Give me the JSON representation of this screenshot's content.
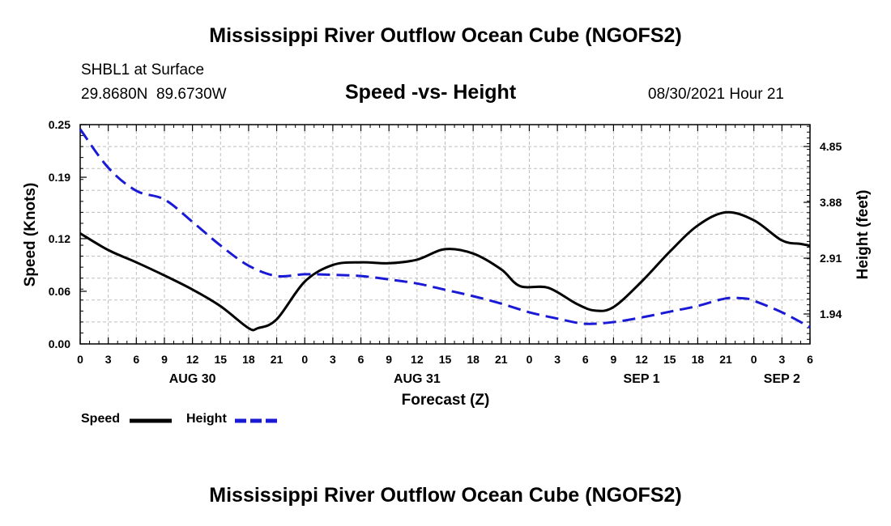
{
  "header": {
    "title": "Mississippi River Outflow Ocean Cube (NGOFS2)",
    "station": "SHBL1 at Surface",
    "coords": "29.8680N  89.6730W",
    "subtitle": "Speed -vs- Height",
    "datetime": "08/30/2021 Hour 21"
  },
  "footer": {
    "title": "Mississippi River Outflow Ocean Cube (NGOFS2)"
  },
  "legend": {
    "speed_label": "Speed",
    "height_label": "Height"
  },
  "colors": {
    "speed": "#000000",
    "height": "#1a1ad6",
    "grid": "#bdbdbd"
  },
  "chart_data": {
    "type": "line",
    "xlabel": "Forecast (Z)",
    "ylabel_left": "Speed (Knots)",
    "ylabel_right": "Height (feet)",
    "xlim": [
      0,
      78
    ],
    "ylim_left": [
      0,
      0.25
    ],
    "ylim_right": [
      1.42,
      5.23
    ],
    "x_ticks": [
      0,
      3,
      6,
      9,
      12,
      15,
      18,
      21,
      24,
      27,
      30,
      33,
      36,
      39,
      42,
      45,
      48,
      51,
      54,
      57,
      60,
      63,
      66,
      69,
      72,
      75,
      78
    ],
    "x_tick_labels": [
      "0",
      "3",
      "6",
      "9",
      "12",
      "15",
      "18",
      "21",
      "0",
      "3",
      "6",
      "9",
      "12",
      "15",
      "18",
      "21",
      "0",
      "3",
      "6",
      "9",
      "12",
      "15",
      "18",
      "21",
      "0",
      "3",
      "6"
    ],
    "date_labels": [
      {
        "x": 12,
        "label": "AUG 30"
      },
      {
        "x": 36,
        "label": "AUG 31"
      },
      {
        "x": 60,
        "label": "SEP 1"
      },
      {
        "x": 75,
        "label": "SEP 2"
      }
    ],
    "y_left_ticks": [
      0.0,
      0.06,
      0.12,
      0.19,
      0.25
    ],
    "y_left_tick_labels": [
      "0.00",
      "0.06",
      "0.12",
      "0.19",
      "0.25"
    ],
    "y_right_ticks": [
      1.94,
      2.91,
      3.88,
      4.85
    ],
    "y_right_tick_labels": [
      "1.94",
      "2.91",
      "3.88",
      "4.85"
    ],
    "grid": true,
    "series": [
      {
        "name": "Speed",
        "axis": "left",
        "style": "solid",
        "x": [
          0,
          3,
          6,
          9,
          12,
          15,
          18,
          19,
          21,
          24,
          27,
          30,
          33,
          36,
          39,
          42,
          45,
          47,
          50,
          53,
          55,
          57,
          60,
          63,
          66,
          69,
          72,
          75,
          77,
          78
        ],
        "values": [
          0.126,
          0.107,
          0.093,
          0.078,
          0.062,
          0.043,
          0.018,
          0.018,
          0.028,
          0.071,
          0.09,
          0.093,
          0.092,
          0.096,
          0.108,
          0.103,
          0.085,
          0.066,
          0.064,
          0.046,
          0.038,
          0.042,
          0.071,
          0.105,
          0.135,
          0.15,
          0.141,
          0.118,
          0.114,
          0.112
        ]
      },
      {
        "name": "Height",
        "axis": "right",
        "style": "dashed",
        "x": [
          0,
          3,
          6,
          9,
          12,
          15,
          18,
          21,
          24,
          27,
          30,
          33,
          36,
          39,
          42,
          45,
          48,
          51,
          54,
          57,
          60,
          63,
          66,
          69,
          71,
          72,
          75,
          78
        ],
        "values": [
          5.15,
          4.48,
          4.08,
          3.93,
          3.54,
          3.13,
          2.78,
          2.6,
          2.63,
          2.62,
          2.6,
          2.54,
          2.47,
          2.36,
          2.25,
          2.12,
          1.97,
          1.86,
          1.77,
          1.8,
          1.88,
          1.98,
          2.08,
          2.21,
          2.21,
          2.17,
          1.97,
          1.71
        ]
      }
    ]
  }
}
